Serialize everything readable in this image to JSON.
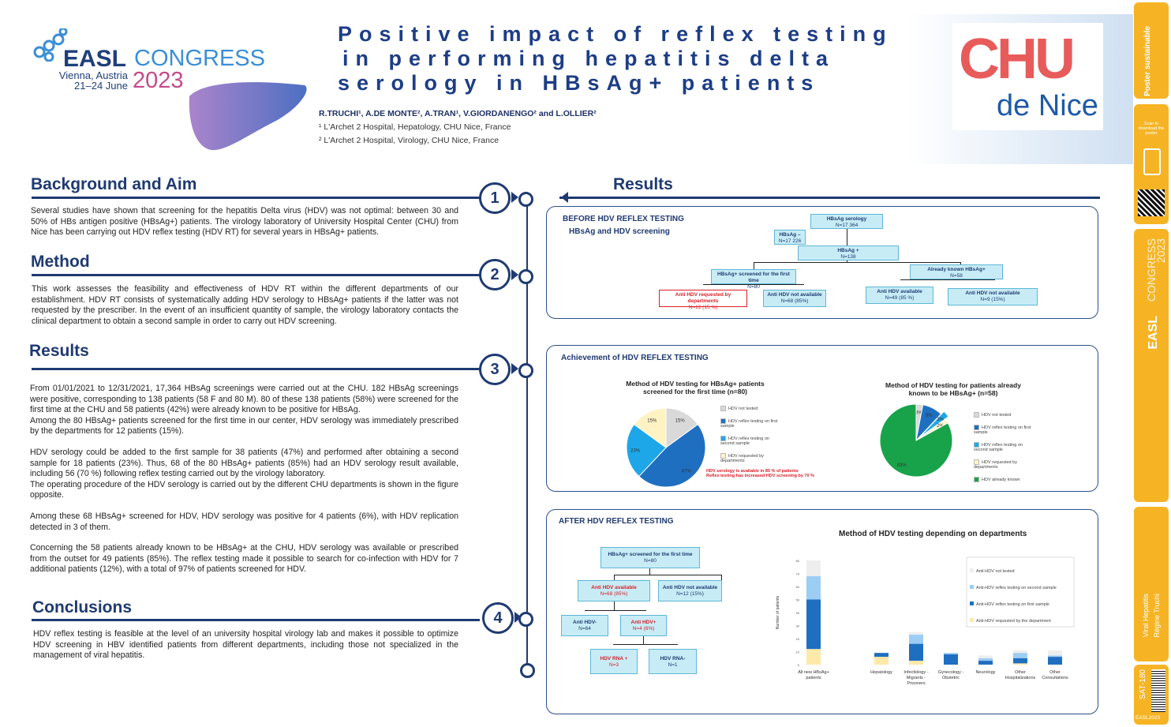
{
  "header": {
    "logo_line1": "EASL",
    "logo_line2": "CONGRESS",
    "logo_city": "Vienna, Austria",
    "logo_dates": "21–24 June",
    "logo_year": "2023",
    "title_lines": [
      "Positive impact of reflex testing",
      "in performing hepatitis delta",
      "serology in HBsAg+ patients"
    ],
    "authors": "R.TRUCHI¹, A.DE MONTE², A.TRAN¹, V.GIORDANENGO² and L.OLLIER²",
    "affiliation1": "¹ L'Archet 2 Hospital, Hepatology, CHU Nice, France",
    "affiliation2": "² L'Archet 2 Hospital, Virology, CHU Nice, France",
    "chu_logo_top": "CHU",
    "chu_logo_bottom": "de Nice"
  },
  "sections": {
    "background_title": "Background and Aim",
    "background_text": "Several studies have shown that screening for the hepatitis Delta virus (HDV) was not optimal: between 30 and 50% of HBs antigen positive (HBsAg+) patients. The virology laboratory of University Hospital Center (CHU) from Nice has been carrying out HDV reflex testing (HDV RT) for several years in HBsAg+ patients.",
    "method_title": "Method",
    "method_text": "This work assesses the feasibility and effectiveness of HDV RT within the different departments of our establishment. HDV RT consists of systematically adding HDV serology to HBsAg+ patients if the latter was not requested by the prescriber. In the event of an insufficient quantity of sample, the virology laboratory contacts the clinical department to obtain a second sample in order to carry out HDV screening.",
    "results_title": "Results",
    "results_p1": "From 01/01/2021 to 12/31/2021, 17,364 HBsAg screenings were carried out at the CHU. 182 HBsAg screenings were positive, corresponding to 138 patients (58 F and 80 M). 80 of these 138 patients (58%) were screened for the first time at the CHU and 58 patients (42%) were already known to be positive for HBsAg.",
    "results_p2": "Among the 80 HBsAg+ patients screened for the first time in our center, HDV serology was immediately prescribed by the departments for 12 patients (15%).",
    "results_p3": "HDV serology could be added to the first sample for 38 patients (47%) and performed after obtaining a second sample for 18 patients (23%). Thus, 68 of the 80 HBsAg+ patients (85%) had an HDV serology result available, including 56 (70 %) following reflex testing carried out by the virology laboratory.",
    "results_p4": "The operating procedure of the HDV serology is carried out by the different CHU departments is shown in the figure opposite.",
    "results_p5": "Among these 68 HBsAg+ screened for HDV, HDV serology was positive for 4 patients (6%), with HDV replication detected in 3 of them.",
    "results_p6": "Concerning the 58 patients already known to be HBsAg+ at the CHU, HDV serology was available or prescribed from the outset for 49 patients (85%). The reflex testing made it possible to search for co-infection with HDV for 7 additional patients (12%), with a total of 97% of patients screened for HDV.",
    "conclusions_title": "Conclusions",
    "conclusions_text": "HDV reflex testing is feasible at the level of an university hospital virology lab and makes it possible to optimize HDV screening in HBV identified patients from different departments, including those not specialized in the management of viral hepatitis.",
    "right_results_title": "Results",
    "steps": [
      "1",
      "2",
      "3",
      "4"
    ]
  },
  "before": {
    "label1": "BEFORE HDV REFLEX TESTING",
    "label2": "HBsAg and HDV screening",
    "serology": "HBsAg serology",
    "serology_n": "N=17 364",
    "neg": "HBsAg –",
    "neg_n": "N=17 226",
    "pos": "HBsAg +",
    "pos_n": "N=138",
    "first": "HBsAg+ screened for the first time",
    "first_n": "N=80",
    "known": "Already known HBsAg+",
    "known_n": "N=58",
    "req": "Anti HDV requested by departments",
    "req_n": "N=12 (15 %)",
    "notavail1": "Anti HDV not available",
    "notavail1_n": "N=68 (85%)",
    "avail2": "Anti HDV available",
    "avail2_n": "N=49 (85 %)",
    "notavail2": "Anti HDV not available",
    "notavail2_n": "N=9 (15%)"
  },
  "achievement": {
    "label": "Achievement of  HDV REFLEX TESTING",
    "note1": "HDV serology is available in 85 % of patients",
    "note2": "Reflex testing has increased HDV screening by 70 %"
  },
  "pie1": {
    "title1": "Method of HDV testing for HBsAg+ patients",
    "title2": "screened for the first time (n=80)",
    "slices": [
      {
        "label": "HDV not tested",
        "value": 15,
        "color": "#d9d9d9",
        "text": "15%"
      },
      {
        "label": "HDV reflex testing on first sample",
        "value": 47,
        "color": "#1f6fc0",
        "text": "47%"
      },
      {
        "label": "HDV reflex testing on second sample",
        "value": 23,
        "color": "#1ea7e8",
        "text": "23%"
      },
      {
        "label": "HDV requested by departments",
        "value": 15,
        "color": "#fff3c4",
        "text": "15%"
      }
    ]
  },
  "pie2": {
    "title1": "Method of HDV testing for patients already",
    "title2": "known to be HBsAg+ (n=58)",
    "slices": [
      {
        "label": "HDV not tested",
        "value": 3,
        "color": "#d9d9d9",
        "text": "3%"
      },
      {
        "label": "HDV reflex testing on first sample",
        "value": 9,
        "color": "#1f6fc0",
        "text": "9%"
      },
      {
        "label": "HDV reflex testing on second sample",
        "value": 3,
        "color": "#1ea7e8",
        "text": "3%"
      },
      {
        "label": "HDV requested by departments",
        "value": 2,
        "color": "#fff3c4",
        "text": "2%"
      },
      {
        "label": "HDV already known",
        "value": 83,
        "color": "#18a34a",
        "text": "83%"
      }
    ]
  },
  "after": {
    "label": "AFTER HDV REFLEX TESTING",
    "first": "HBsAg+ screened for the first time",
    "first_n": "N=80",
    "avail": "Anti HDV available",
    "avail_n": "N=68 (85%)",
    "notavail": "Anti HDV not available",
    "notavail_n": "N=12 (15%)",
    "neg": "Anti HDV-",
    "neg_n": "N=64",
    "pos": "Anti HDV+",
    "pos_n": "N=4 (6%)",
    "rnapos": "HDV RNA +",
    "rnapos_n": "N=3",
    "rnaneg": "HDV RNA-",
    "rnaneg_n": "N=1"
  },
  "chart_data": {
    "type": "bar",
    "title": "Method of HDV testing depending on departments",
    "ylabel": "Number of patients",
    "ylim": [
      0,
      80
    ],
    "yticks": [
      "0",
      "10",
      "20",
      "30",
      "40",
      "50",
      "60",
      "70",
      "80"
    ],
    "categories": [
      "All new HBsAg+ patients",
      "Hepatology",
      "Infectiology - Migrants - Prisoners",
      "Gynecology - Obstetric",
      "Neurology",
      "Other Hospitalizations",
      "Other Consultations"
    ],
    "series": [
      {
        "name": "Anti-HDV requested by the department",
        "color": "#fde9a9",
        "values": [
          12,
          6,
          3,
          0,
          0,
          1,
          0
        ]
      },
      {
        "name": "Anti-HDV reflex testing on first sample",
        "color": "#1f6fc0",
        "values": [
          38,
          3,
          13,
          8,
          3,
          4,
          6
        ]
      },
      {
        "name": "Anti-HDV reflex testing on second sample",
        "color": "#9ccdf3",
        "values": [
          18,
          0,
          7,
          1,
          2,
          4,
          1
        ]
      },
      {
        "name": "Anti-HDV not tested",
        "color": "#eeeeee",
        "values": [
          12,
          0,
          2,
          0,
          2,
          2,
          4
        ]
      }
    ]
  },
  "sidebar": {
    "brand": "Poster sustainable",
    "scan": "Scan to download the poster",
    "congress": "CONGRESS",
    "year": "2023",
    "easl": "EASL",
    "topic": "Viral Hepatitis",
    "author": "Régine Truchi",
    "code": "SAT-180",
    "footer": "EASL2023"
  }
}
